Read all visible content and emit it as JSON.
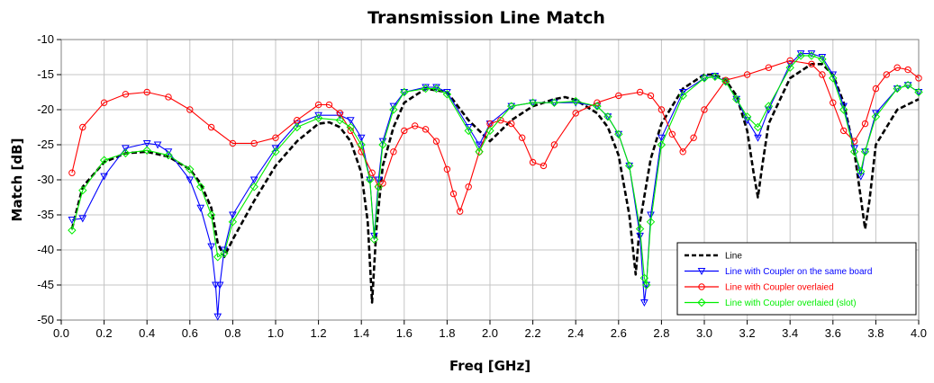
{
  "chart_data": {
    "type": "line",
    "title": "Transmission Line Match",
    "xlabel": "Freq [GHz]",
    "ylabel": "Match [dB]",
    "xlim": [
      0.0,
      4.0
    ],
    "ylim": [
      -50,
      -10
    ],
    "xticks": [
      "0.0",
      "0.2",
      "0.4",
      "0.6",
      "0.8",
      "1.0",
      "1.2",
      "1.4",
      "1.6",
      "1.8",
      "2.0",
      "2.2",
      "2.4",
      "2.6",
      "2.8",
      "3.0",
      "3.2",
      "3.4",
      "3.6",
      "3.8",
      "4.0"
    ],
    "yticks": [
      "-10",
      "-15",
      "-20",
      "-25",
      "-30",
      "-35",
      "-40",
      "-45",
      "-50"
    ],
    "grid": true,
    "legend_position": "bottom-right",
    "series": [
      {
        "name": "Line",
        "color": "#000000",
        "dash": true,
        "marker": "none",
        "x": [
          0.05,
          0.1,
          0.2,
          0.3,
          0.4,
          0.5,
          0.6,
          0.65,
          0.7,
          0.73,
          0.76,
          0.8,
          0.9,
          1.0,
          1.1,
          1.2,
          1.25,
          1.3,
          1.35,
          1.4,
          1.43,
          1.45,
          1.47,
          1.5,
          1.55,
          1.6,
          1.7,
          1.8,
          1.9,
          2.0,
          2.1,
          2.2,
          2.3,
          2.35,
          2.4,
          2.5,
          2.55,
          2.6,
          2.65,
          2.68,
          2.7,
          2.75,
          2.8,
          2.9,
          3.0,
          3.05,
          3.1,
          3.15,
          3.2,
          3.23,
          3.25,
          3.27,
          3.3,
          3.4,
          3.5,
          3.55,
          3.6,
          3.65,
          3.7,
          3.75,
          3.77,
          3.8,
          3.9,
          4.0
        ],
        "y": [
          -37,
          -31,
          -27.5,
          -26.2,
          -26,
          -26.7,
          -28.5,
          -30.5,
          -34,
          -39,
          -41,
          -38.5,
          -33,
          -28,
          -24.5,
          -22,
          -21.8,
          -22.5,
          -24.5,
          -29,
          -36,
          -47.5,
          -37,
          -28,
          -22.5,
          -19,
          -17,
          -17.5,
          -21.5,
          -24.5,
          -21.5,
          -19.5,
          -18.5,
          -18.2,
          -18.6,
          -20.5,
          -22.5,
          -26.5,
          -35,
          -43.5,
          -36,
          -27,
          -22,
          -17,
          -15,
          -15,
          -15.8,
          -18,
          -23,
          -29,
          -32.5,
          -28,
          -22,
          -15.5,
          -13.5,
          -13.5,
          -15,
          -19,
          -26,
          -37,
          -33,
          -25,
          -20,
          -18.5
        ]
      },
      {
        "name": "Line with Coupler on the same board",
        "color": "#0000ff",
        "dash": false,
        "marker": "triangle-down",
        "x": [
          0.05,
          0.1,
          0.2,
          0.3,
          0.4,
          0.45,
          0.5,
          0.6,
          0.65,
          0.7,
          0.72,
          0.73,
          0.74,
          0.76,
          0.8,
          0.9,
          1.0,
          1.1,
          1.2,
          1.3,
          1.35,
          1.4,
          1.44,
          1.46,
          1.48,
          1.5,
          1.55,
          1.6,
          1.7,
          1.75,
          1.8,
          1.9,
          1.95,
          2.0,
          2.1,
          2.2,
          2.3,
          2.4,
          2.5,
          2.55,
          2.6,
          2.65,
          2.7,
          2.72,
          2.73,
          2.75,
          2.8,
          2.9,
          3.0,
          3.05,
          3.1,
          3.15,
          3.2,
          3.25,
          3.3,
          3.4,
          3.45,
          3.5,
          3.55,
          3.6,
          3.65,
          3.7,
          3.73,
          3.75,
          3.8,
          3.9,
          3.95,
          4.0
        ],
        "y": [
          -35.7,
          -35.5,
          -29.5,
          -25.5,
          -24.8,
          -25,
          -26,
          -30,
          -34,
          -39.5,
          -45,
          -49.5,
          -45,
          -40,
          -35,
          -30,
          -25.5,
          -22,
          -20.8,
          -20.8,
          -21.5,
          -24,
          -30,
          -38,
          -30,
          -24.5,
          -19.5,
          -17.5,
          -16.8,
          -16.8,
          -17.5,
          -22.5,
          -25,
          -22,
          -19.5,
          -19,
          -19,
          -19,
          -19.5,
          -21,
          -23.5,
          -28,
          -38,
          -47.5,
          -45,
          -35,
          -24,
          -17.5,
          -15.5,
          -15.2,
          -16,
          -18.5,
          -21.5,
          -24,
          -20,
          -13.5,
          -12,
          -12,
          -12.5,
          -15,
          -19.5,
          -25.5,
          -29.5,
          -26,
          -20.5,
          -17,
          -16.5,
          -17.5
        ]
      },
      {
        "name": "Line with Coupler overlaied",
        "color": "#ff0000",
        "dash": false,
        "marker": "circle",
        "x": [
          0.05,
          0.1,
          0.2,
          0.3,
          0.4,
          0.5,
          0.6,
          0.7,
          0.8,
          0.9,
          1.0,
          1.1,
          1.2,
          1.25,
          1.3,
          1.35,
          1.4,
          1.45,
          1.48,
          1.5,
          1.55,
          1.6,
          1.65,
          1.7,
          1.75,
          1.8,
          1.83,
          1.86,
          1.9,
          1.95,
          2.0,
          2.05,
          2.1,
          2.15,
          2.2,
          2.25,
          2.3,
          2.4,
          2.5,
          2.6,
          2.7,
          2.75,
          2.8,
          2.85,
          2.9,
          2.95,
          3.0,
          3.1,
          3.2,
          3.3,
          3.4,
          3.5,
          3.55,
          3.6,
          3.65,
          3.7,
          3.75,
          3.8,
          3.85,
          3.9,
          3.95,
          4.0
        ],
        "y": [
          -29,
          -22.5,
          -19,
          -17.8,
          -17.5,
          -18.2,
          -20,
          -22.5,
          -24.8,
          -24.8,
          -24,
          -21.5,
          -19.3,
          -19.3,
          -20.5,
          -23,
          -26,
          -29,
          -31,
          -30.5,
          -26,
          -23,
          -22.3,
          -22.8,
          -24.5,
          -28.5,
          -32,
          -34.5,
          -31,
          -26,
          -22,
          -21.5,
          -22,
          -24,
          -27.5,
          -28,
          -25,
          -20.5,
          -19,
          -18,
          -17.5,
          -18,
          -20,
          -23.5,
          -26,
          -24,
          -20,
          -15.8,
          -15,
          -14,
          -13,
          -13.5,
          -15,
          -19,
          -23,
          -24.5,
          -22,
          -17,
          -15,
          -14,
          -14.3,
          -15.5
        ]
      },
      {
        "name": "Line with Coupler overlaied (slot)",
        "color": "#00ee00",
        "dash": false,
        "marker": "diamond",
        "x": [
          0.05,
          0.1,
          0.2,
          0.3,
          0.4,
          0.5,
          0.6,
          0.65,
          0.7,
          0.73,
          0.76,
          0.8,
          0.9,
          1.0,
          1.1,
          1.2,
          1.3,
          1.35,
          1.4,
          1.44,
          1.46,
          1.48,
          1.5,
          1.55,
          1.6,
          1.7,
          1.75,
          1.8,
          1.9,
          1.95,
          2.0,
          2.1,
          2.2,
          2.3,
          2.4,
          2.5,
          2.55,
          2.6,
          2.65,
          2.7,
          2.72,
          2.73,
          2.75,
          2.8,
          2.9,
          3.0,
          3.05,
          3.1,
          3.15,
          3.2,
          3.25,
          3.3,
          3.4,
          3.45,
          3.5,
          3.55,
          3.6,
          3.65,
          3.7,
          3.73,
          3.75,
          3.8,
          3.9,
          3.95,
          4.0
        ],
        "y": [
          -37.2,
          -31.5,
          -27.2,
          -26.2,
          -25.8,
          -26.5,
          -28.5,
          -31,
          -35,
          -41,
          -40.5,
          -36,
          -31,
          -26,
          -22.5,
          -21.2,
          -21.5,
          -22.5,
          -25,
          -30,
          -38.5,
          -31,
          -25,
          -20,
          -17.5,
          -17,
          -17,
          -17.8,
          -23,
          -26,
          -23,
          -19.5,
          -19,
          -19,
          -18.8,
          -19.5,
          -21,
          -23.5,
          -28,
          -37,
          -44,
          -45,
          -36,
          -25,
          -18,
          -15.5,
          -15.3,
          -16,
          -18.5,
          -21,
          -22.5,
          -19.5,
          -14,
          -12.3,
          -12.3,
          -12.8,
          -15.5,
          -20,
          -26,
          -28.8,
          -26,
          -21,
          -17,
          -16.5,
          -17.5
        ]
      }
    ]
  }
}
